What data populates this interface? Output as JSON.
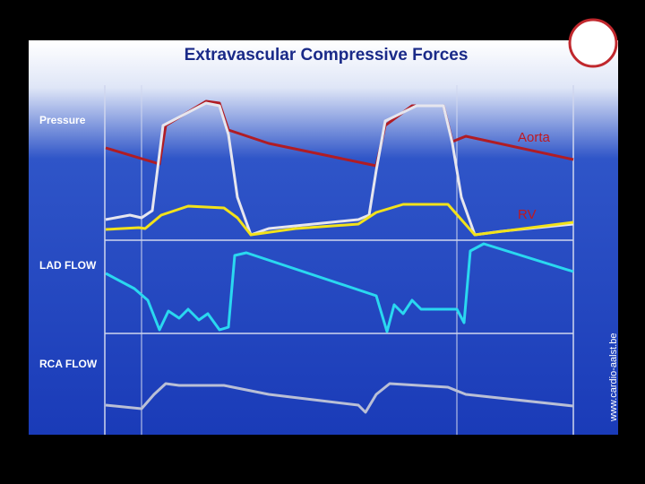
{
  "header": {
    "title": "Extravascular Compressive Forces"
  },
  "panels": [
    {
      "label": "Pressure"
    },
    {
      "label": "LAD FLOW"
    },
    {
      "label": "RCA FLOW"
    }
  ],
  "traces": [
    {
      "label": "Aorta"
    },
    {
      "label": "RV"
    }
  ],
  "watermark": "www.cardio-aalst.be"
}
